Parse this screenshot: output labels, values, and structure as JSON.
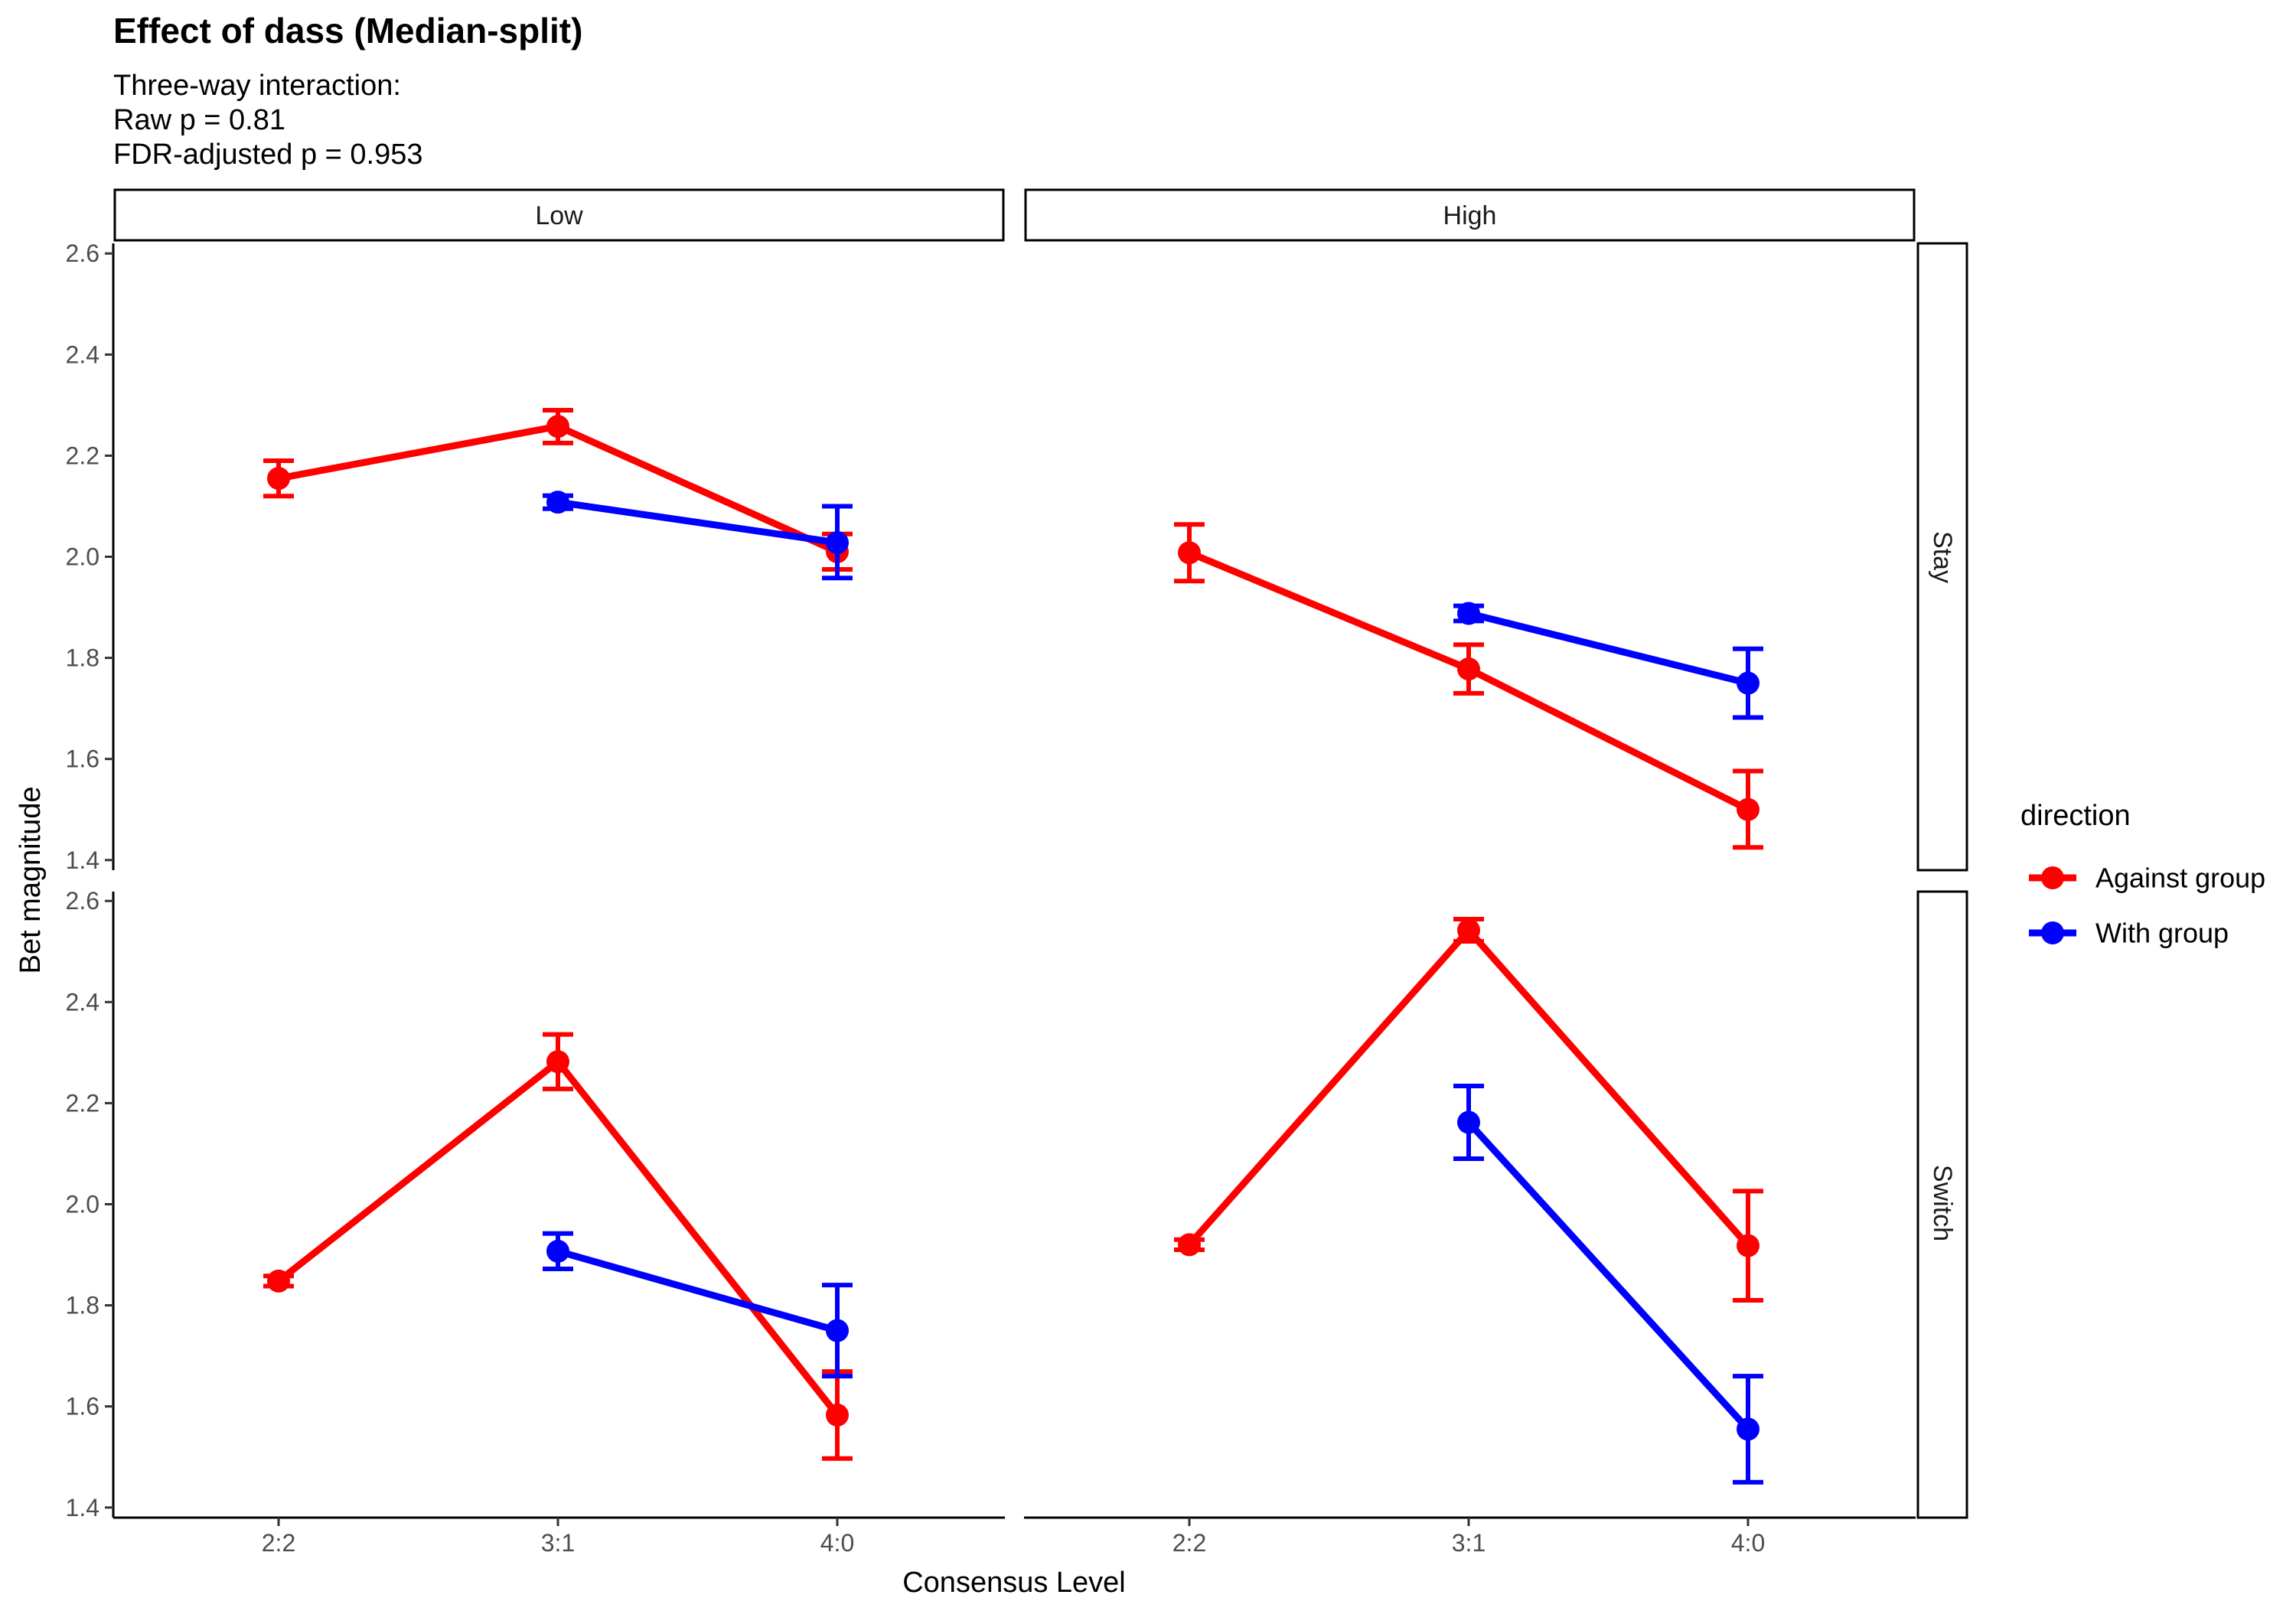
{
  "chart_data": {
    "type": "line",
    "title": "Effect of dass (Median-split)",
    "subtitle": [
      "Three-way interaction:",
      "Raw p = 0.81",
      "FDR-adjusted p = 0.953"
    ],
    "xlabel": "Consensus Level",
    "ylabel": "Bet magnitude",
    "categories": [
      "2:2",
      "3:1",
      "4:0"
    ],
    "ylim": [
      1.38,
      2.62
    ],
    "yticks": [
      1.4,
      1.6,
      1.8,
      2.0,
      2.2,
      2.4,
      2.6
    ],
    "ytick_labels": [
      "1.4",
      "1.6",
      "1.8",
      "2.0",
      "2.2",
      "2.4",
      "2.6"
    ],
    "facet_cols": [
      "Low",
      "High"
    ],
    "facet_rows": [
      "Stay",
      "Switch"
    ],
    "legend": {
      "title": "direction",
      "position": "right",
      "entries": [
        {
          "label": "Against group",
          "color": "#ff0000"
        },
        {
          "label": "With group",
          "color": "#0000ff"
        }
      ]
    },
    "grid": false,
    "panels": [
      {
        "col": "Low",
        "row": "Stay",
        "series": [
          {
            "name": "Against group",
            "color": "#ff0000",
            "points": [
              {
                "x": "2:2",
                "y": 2.155,
                "lo": 2.12,
                "hi": 2.19
              },
              {
                "x": "3:1",
                "y": 2.258,
                "lo": 2.225,
                "hi": 2.29
              },
              {
                "x": "4:0",
                "y": 2.01,
                "lo": 1.975,
                "hi": 2.045
              }
            ]
          },
          {
            "name": "With group",
            "color": "#0000ff",
            "points": [
              {
                "x": "3:1",
                "y": 2.108,
                "lo": 2.095,
                "hi": 2.121
              },
              {
                "x": "4:0",
                "y": 2.028,
                "lo": 1.958,
                "hi": 2.1
              }
            ]
          }
        ]
      },
      {
        "col": "High",
        "row": "Stay",
        "series": [
          {
            "name": "Against group",
            "color": "#ff0000",
            "points": [
              {
                "x": "2:2",
                "y": 2.008,
                "lo": 1.952,
                "hi": 2.064
              },
              {
                "x": "3:1",
                "y": 1.778,
                "lo": 1.73,
                "hi": 1.826
              },
              {
                "x": "4:0",
                "y": 1.5,
                "lo": 1.425,
                "hi": 1.576
              }
            ]
          },
          {
            "name": "With group",
            "color": "#0000ff",
            "points": [
              {
                "x": "3:1",
                "y": 1.888,
                "lo": 1.873,
                "hi": 1.903
              },
              {
                "x": "4:0",
                "y": 1.75,
                "lo": 1.682,
                "hi": 1.818
              }
            ]
          }
        ]
      },
      {
        "col": "Low",
        "row": "Switch",
        "series": [
          {
            "name": "Against group",
            "color": "#ff0000",
            "points": [
              {
                "x": "2:2",
                "y": 1.848,
                "lo": 1.838,
                "hi": 1.858
              },
              {
                "x": "3:1",
                "y": 2.282,
                "lo": 2.228,
                "hi": 2.336
              },
              {
                "x": "4:0",
                "y": 1.583,
                "lo": 1.497,
                "hi": 1.669
              }
            ]
          },
          {
            "name": "With group",
            "color": "#0000ff",
            "points": [
              {
                "x": "3:1",
                "y": 1.907,
                "lo": 1.872,
                "hi": 1.942
              },
              {
                "x": "4:0",
                "y": 1.75,
                "lo": 1.66,
                "hi": 1.84
              }
            ]
          }
        ]
      },
      {
        "col": "High",
        "row": "Switch",
        "series": [
          {
            "name": "Against group",
            "color": "#ff0000",
            "points": [
              {
                "x": "2:2",
                "y": 1.92,
                "lo": 1.91,
                "hi": 1.93
              },
              {
                "x": "3:1",
                "y": 2.542,
                "lo": 2.52,
                "hi": 2.564
              },
              {
                "x": "4:0",
                "y": 1.918,
                "lo": 1.81,
                "hi": 2.026
              }
            ]
          },
          {
            "name": "With group",
            "color": "#0000ff",
            "points": [
              {
                "x": "3:1",
                "y": 2.162,
                "lo": 2.09,
                "hi": 2.234
              },
              {
                "x": "4:0",
                "y": 1.555,
                "lo": 1.45,
                "hi": 1.66
              }
            ]
          }
        ]
      }
    ]
  }
}
